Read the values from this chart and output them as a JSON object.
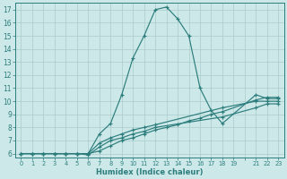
{
  "xlabel": "Humidex (Indice chaleur)",
  "bg_color": "#cce8e8",
  "line_color": "#2d7d7d",
  "grid_color": "#aacccc",
  "ylim": [
    5.7,
    17.5
  ],
  "yticks": [
    6,
    7,
    8,
    9,
    10,
    11,
    12,
    13,
    14,
    15,
    16,
    17
  ],
  "xlabels": [
    "0",
    "1",
    "2",
    "3",
    "4",
    "5",
    "6",
    "7",
    "8",
    "9",
    "10",
    "11",
    "12",
    "13",
    "14",
    "15",
    "16",
    "17",
    "18",
    "19",
    "",
    "21",
    "22",
    "23"
  ],
  "lines": [
    {
      "xi": [
        0,
        1,
        2,
        3,
        4,
        5,
        6,
        7,
        8,
        9,
        10,
        11,
        12,
        13,
        14,
        15,
        16,
        17,
        18,
        21,
        22,
        23
      ],
      "y": [
        6,
        6,
        6,
        6,
        6,
        6,
        6,
        7.5,
        8.3,
        10.5,
        13.3,
        15.0,
        17.0,
        17.2,
        16.3,
        15.0,
        11.0,
        9.3,
        8.3,
        10.5,
        10.2,
        10.2
      ]
    },
    {
      "xi": [
        0,
        1,
        2,
        3,
        4,
        5,
        6,
        7,
        8,
        9,
        10,
        11,
        12,
        18,
        21,
        22,
        23
      ],
      "y": [
        6,
        6,
        6,
        6,
        6,
        6,
        6,
        6.8,
        7.2,
        7.5,
        7.8,
        8.0,
        8.2,
        9.5,
        10.0,
        10.0,
        10.0
      ]
    },
    {
      "xi": [
        0,
        1,
        2,
        3,
        4,
        5,
        6,
        7,
        8,
        9,
        10,
        11,
        12,
        18,
        21,
        22,
        23
      ],
      "y": [
        6,
        6,
        6,
        6,
        6,
        6,
        5.9,
        6.5,
        7.0,
        7.2,
        7.5,
        7.7,
        8.0,
        8.8,
        9.5,
        9.8,
        9.8
      ]
    },
    {
      "xi": [
        0,
        1,
        2,
        3,
        4,
        5,
        6,
        7,
        8,
        9,
        10,
        11,
        12,
        13,
        14,
        15,
        16,
        17,
        18,
        21,
        22,
        23
      ],
      "y": [
        6,
        6,
        6,
        6,
        6,
        6,
        6,
        6.2,
        6.6,
        7.0,
        7.2,
        7.5,
        7.8,
        8.0,
        8.2,
        8.5,
        8.7,
        9.0,
        9.2,
        10.1,
        10.3,
        10.3
      ]
    }
  ]
}
